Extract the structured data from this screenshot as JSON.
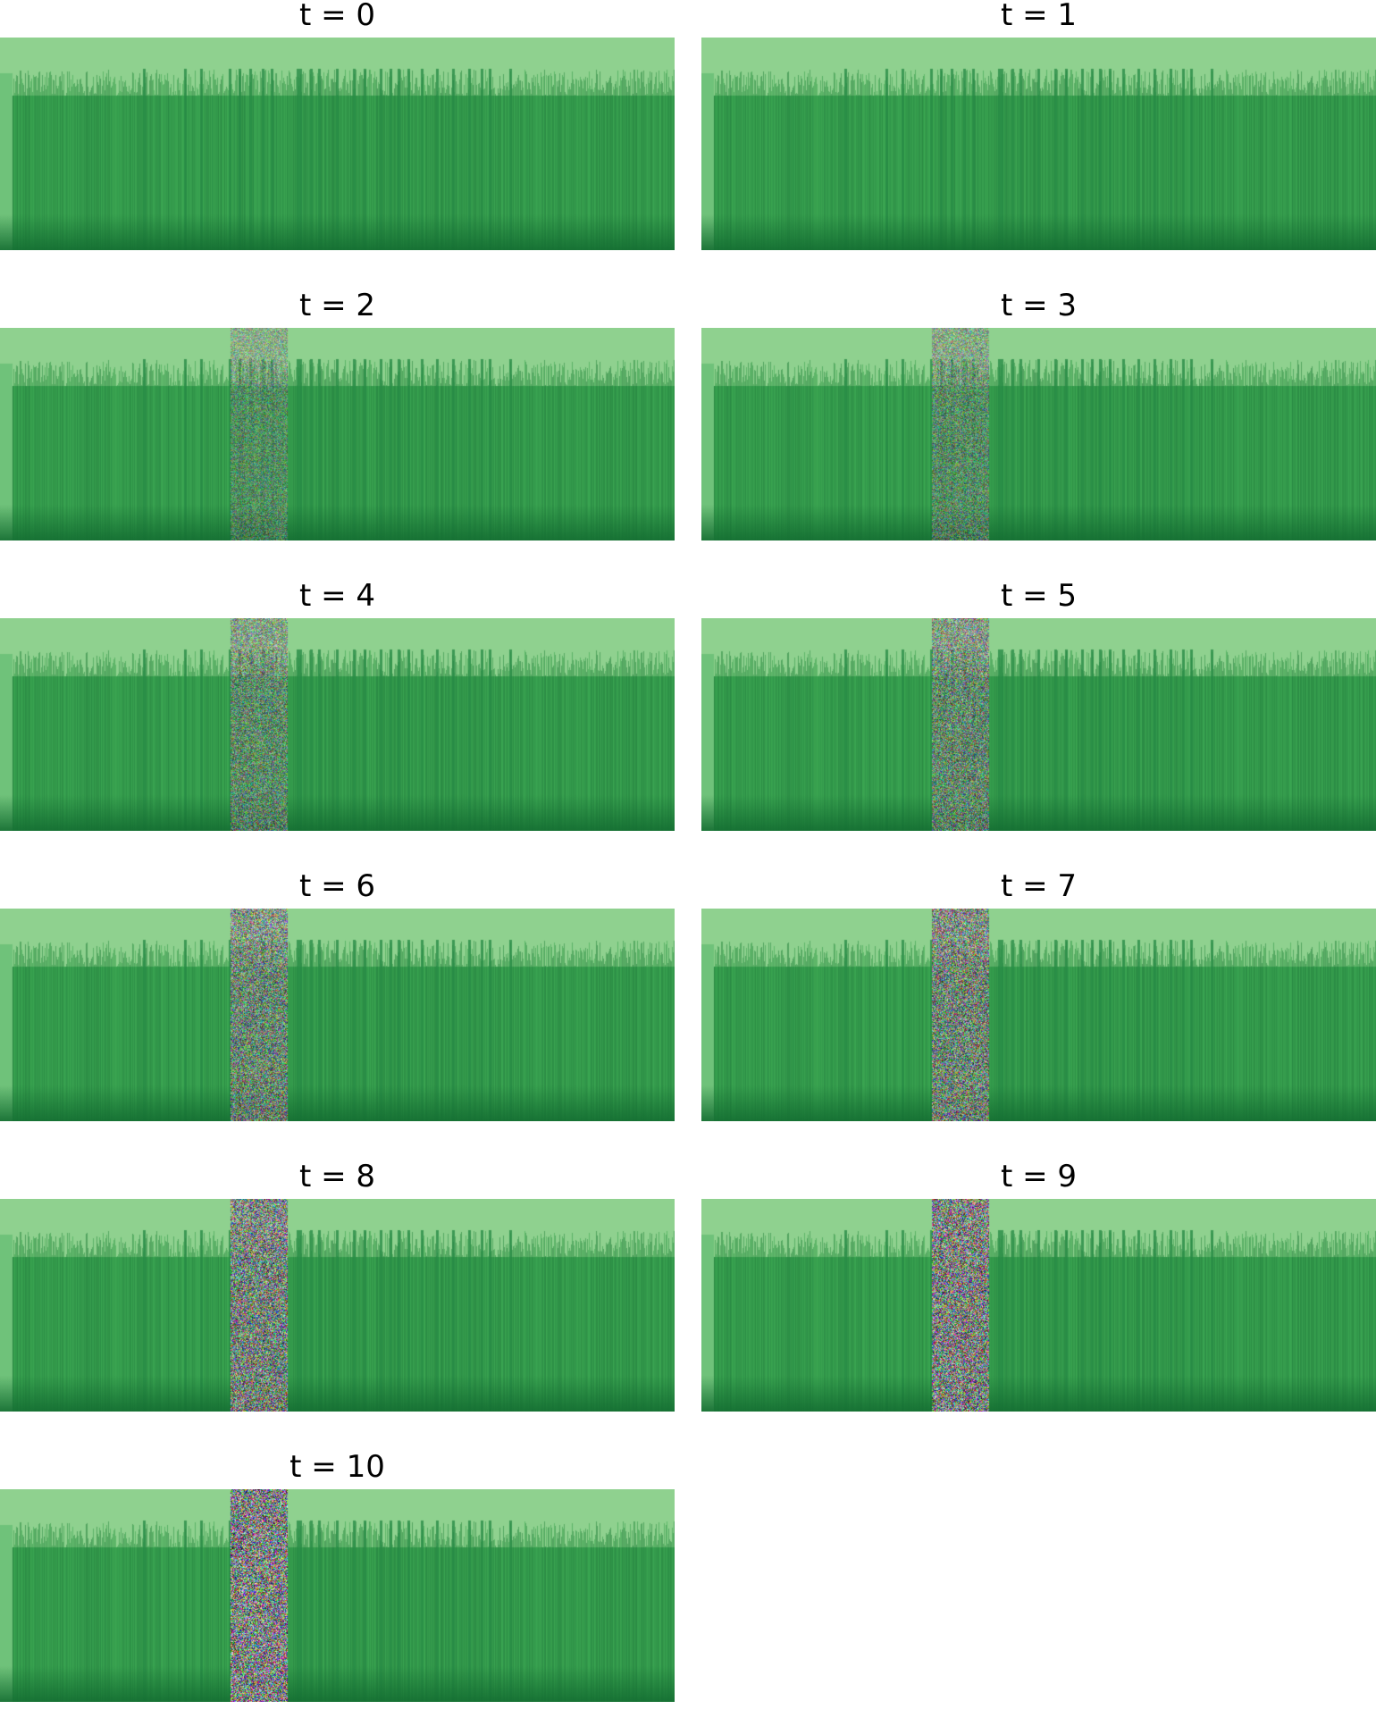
{
  "figure": {
    "panels": [
      {
        "title": "t = 0"
      },
      {
        "title": "t = 1"
      },
      {
        "title": "t = 2"
      },
      {
        "title": "t = 3"
      },
      {
        "title": "t = 4"
      },
      {
        "title": "t = 5"
      },
      {
        "title": "t = 6"
      },
      {
        "title": "t = 7"
      },
      {
        "title": "t = 8"
      },
      {
        "title": "t = 9"
      },
      {
        "title": "t = 10"
      }
    ],
    "colors": {
      "top_band": "#8fd18f",
      "body": "#3aa355",
      "body_dark": "#1f8a3e",
      "noise": "mixed"
    }
  }
}
